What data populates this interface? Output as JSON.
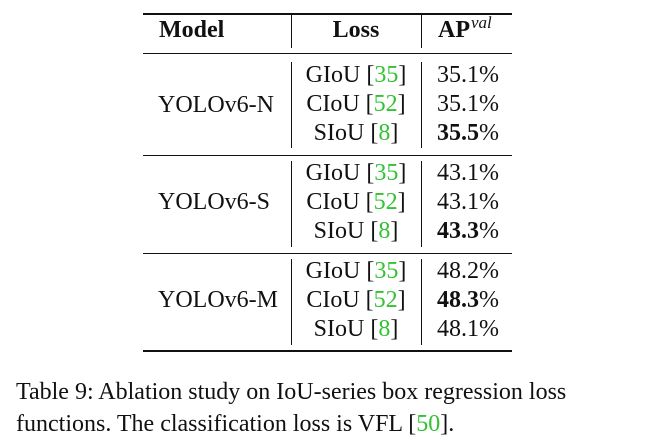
{
  "table": {
    "headers": {
      "model": "Model",
      "loss": "Loss",
      "ap_main": "AP",
      "ap_sup": "val"
    },
    "groups": [
      {
        "model": "YOLOv6-N",
        "rows": [
          {
            "loss": "GIoU",
            "cite": "35",
            "ap": "35.1",
            "pct": "%",
            "best": false
          },
          {
            "loss": "CIoU",
            "cite": "52",
            "ap": "35.1",
            "pct": "%",
            "best": false
          },
          {
            "loss": "SIoU",
            "cite": "8",
            "ap": "35.5",
            "pct": "%",
            "best": true
          }
        ]
      },
      {
        "model": "YOLOv6-S",
        "rows": [
          {
            "loss": "GIoU",
            "cite": "35",
            "ap": "43.1",
            "pct": "%",
            "best": false
          },
          {
            "loss": "CIoU",
            "cite": "52",
            "ap": "43.1",
            "pct": "%",
            "best": false
          },
          {
            "loss": "SIoU",
            "cite": "8",
            "ap": "43.3",
            "pct": "%",
            "best": true
          }
        ]
      },
      {
        "model": "YOLOv6-M",
        "rows": [
          {
            "loss": "GIoU",
            "cite": "35",
            "ap": "48.2",
            "pct": "%",
            "best": false
          },
          {
            "loss": "CIoU",
            "cite": "52",
            "ap": "48.3",
            "pct": "%",
            "best": true
          },
          {
            "loss": "SIoU",
            "cite": "8",
            "ap": "48.1",
            "pct": "%",
            "best": false
          }
        ]
      }
    ]
  },
  "caption": {
    "line1": "Table 9: Ablation study on IoU-series box regression loss",
    "line2_before": "functions. The classification loss is VFL ",
    "line2_cite": "50",
    "line2_after": "."
  },
  "colors": {
    "citation": "#33c233",
    "text": "#111111"
  }
}
